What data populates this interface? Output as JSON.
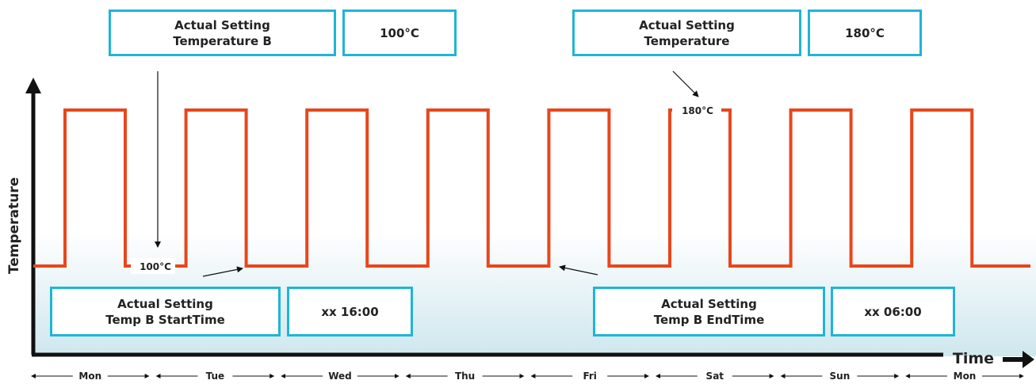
{
  "callouts": {
    "top_left_label": "Actual Setting\nTemperature B",
    "top_left_value": "100°C",
    "top_right_label": "Actual Setting\nTemperature",
    "top_right_value": "180°C",
    "bottom_left_label": "Actual Setting\nTemp B StartTime",
    "bottom_left_value": "xx 16:00",
    "bottom_right_label": "Actual Setting\nTemp B EndTime",
    "bottom_right_value": "xx 06:00"
  },
  "axes": {
    "y_label": "Temperature",
    "x_label": "Time"
  },
  "line_labels": {
    "low": "100°C",
    "high": "180°C"
  },
  "days": [
    "Mon",
    "Tue",
    "Wed",
    "Thu",
    "Fri",
    "Sat",
    "Sun",
    "Mon"
  ],
  "colors": {
    "signal": "#e8461d",
    "box_border": "#1fb5d6",
    "axis": "#111111",
    "background_tint": "#cfe7ee"
  }
}
